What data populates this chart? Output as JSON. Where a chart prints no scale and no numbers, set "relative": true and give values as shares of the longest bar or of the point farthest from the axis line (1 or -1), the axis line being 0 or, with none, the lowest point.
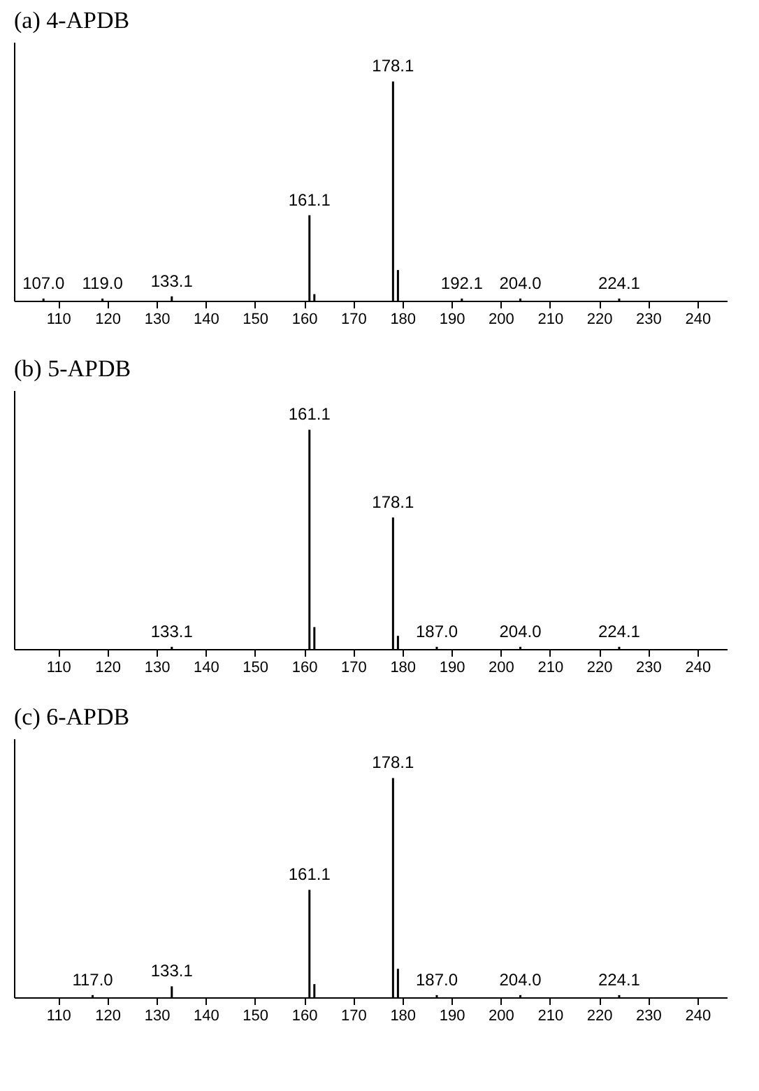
{
  "chart_data": [
    {
      "type": "bar",
      "title": "(a) 4-APDB",
      "relative": true,
      "color": "#000000",
      "x": [
        107.0,
        119.0,
        133.1,
        161.1,
        162.1,
        178.1,
        179.1,
        192.1,
        204.0,
        224.1
      ],
      "values": [
        0.01,
        0.01,
        0.02,
        0.39,
        0.03,
        1,
        0.14,
        0.01,
        0.01,
        0.01
      ],
      "xlim": [
        101,
        246
      ],
      "xticks": [
        110,
        120,
        130,
        140,
        150,
        160,
        170,
        180,
        190,
        200,
        210,
        220,
        230,
        240
      ],
      "annotations": [
        {
          "text": "107.0",
          "x": 107.0,
          "y": 0.01
        },
        {
          "text": "119.0",
          "x": 119.0,
          "y": 0.01
        },
        {
          "text": "133.1",
          "x": 133.1,
          "y": 0.02
        },
        {
          "text": "161.1",
          "x": 161.1,
          "y": 0.39
        },
        {
          "text": "178.1",
          "x": 178.1,
          "y": 1
        },
        {
          "text": "192.1",
          "x": 192.1,
          "y": 0.01
        },
        {
          "text": "204.0",
          "x": 204.0,
          "y": 0.01
        },
        {
          "text": "224.1",
          "x": 224.1,
          "y": 0.01
        }
      ]
    },
    {
      "type": "bar",
      "title": "(b) 5-APDB",
      "relative": true,
      "color": "#000000",
      "x": [
        133.1,
        161.1,
        162.1,
        178.1,
        179.1,
        187.0,
        204.0,
        224.1
      ],
      "values": [
        0.01,
        1,
        0.1,
        0.6,
        0.06,
        0.01,
        0.01,
        0.01
      ],
      "xlim": [
        101,
        246
      ],
      "xticks": [
        110,
        120,
        130,
        140,
        150,
        160,
        170,
        180,
        190,
        200,
        210,
        220,
        230,
        240
      ],
      "annotations": [
        {
          "text": "133.1",
          "x": 133.1,
          "y": 0.01
        },
        {
          "text": "161.1",
          "x": 161.1,
          "y": 1
        },
        {
          "text": "178.1",
          "x": 178.1,
          "y": 0.6
        },
        {
          "text": "187.0",
          "x": 187.0,
          "y": 0.01
        },
        {
          "text": "204.0",
          "x": 204.0,
          "y": 0.01
        },
        {
          "text": "224.1",
          "x": 224.1,
          "y": 0.01
        }
      ]
    },
    {
      "type": "bar",
      "title": "(c) 6-APDB",
      "relative": true,
      "color": "#000000",
      "x": [
        117.0,
        133.1,
        161.1,
        162.1,
        178.1,
        179.1,
        187.0,
        204.0,
        224.1
      ],
      "values": [
        0.01,
        0.05,
        0.49,
        0.06,
        1,
        0.13,
        0.01,
        0.01,
        0.01
      ],
      "xlim": [
        101,
        246
      ],
      "xticks": [
        110,
        120,
        130,
        140,
        150,
        160,
        170,
        180,
        190,
        200,
        210,
        220,
        230,
        240
      ],
      "annotations": [
        {
          "text": "117.0",
          "x": 117.0,
          "y": 0.01
        },
        {
          "text": "133.1",
          "x": 133.1,
          "y": 0.05
        },
        {
          "text": "161.1",
          "x": 161.1,
          "y": 0.49
        },
        {
          "text": "178.1",
          "x": 178.1,
          "y": 1
        },
        {
          "text": "187.0",
          "x": 187.0,
          "y": 0.01
        },
        {
          "text": "204.0",
          "x": 204.0,
          "y": 0.01
        },
        {
          "text": "224.1",
          "x": 224.1,
          "y": 0.01
        }
      ]
    }
  ]
}
